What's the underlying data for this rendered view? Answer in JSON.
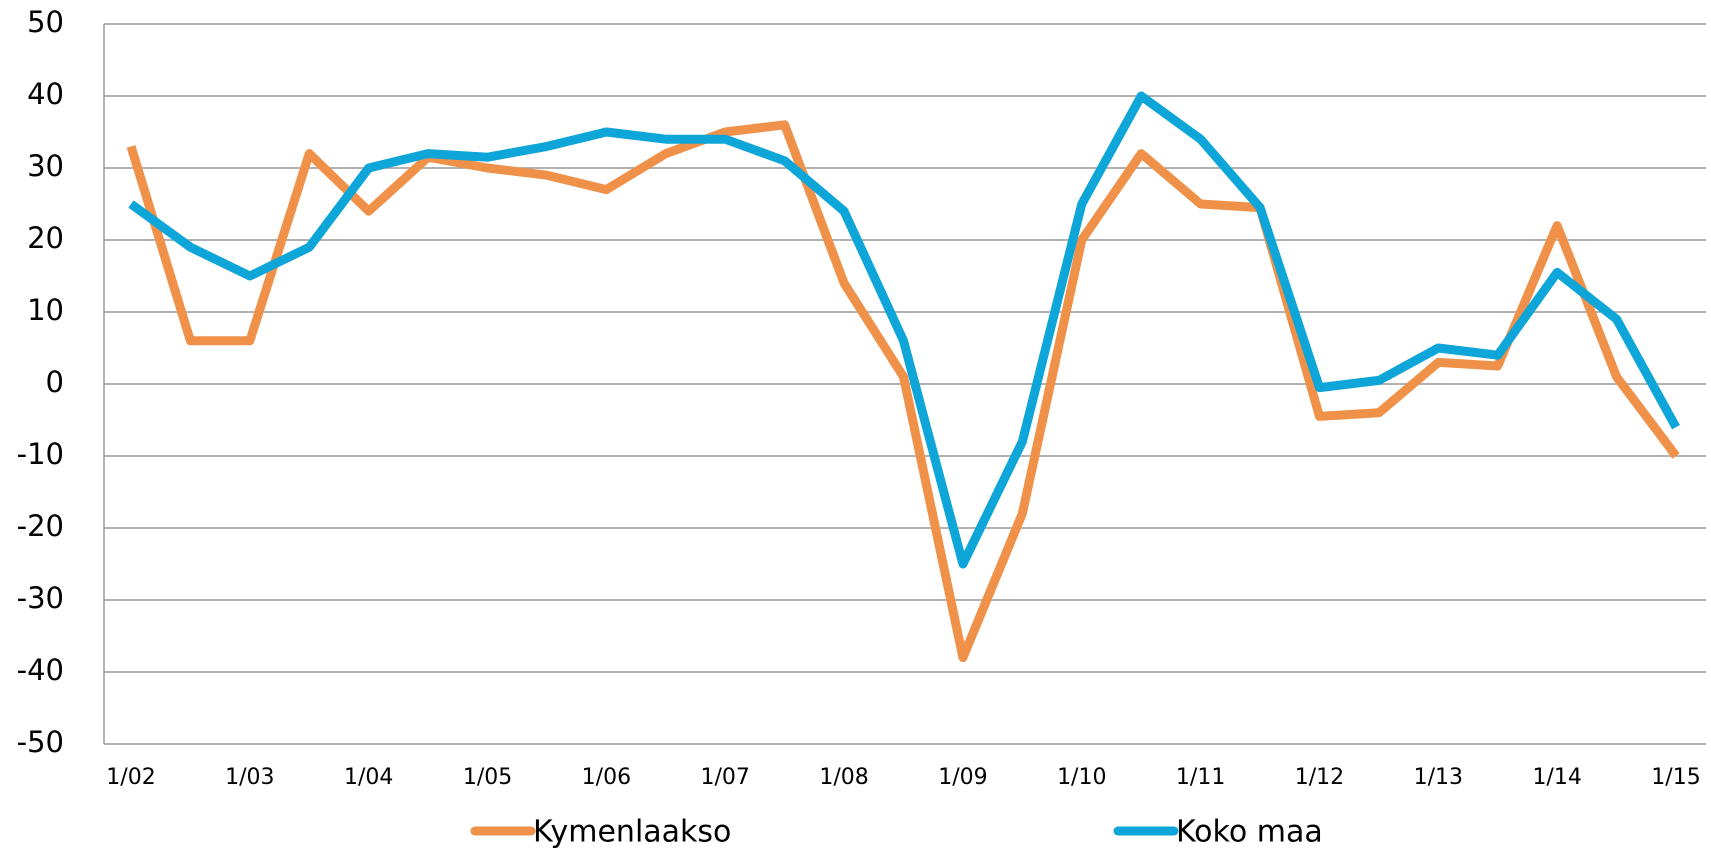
{
  "chart_data": {
    "type": "line",
    "categories": [
      "1/02",
      null,
      "1/03",
      null,
      "1/04",
      null,
      "1/05",
      null,
      "1/06",
      null,
      "1/07",
      null,
      "1/08",
      null,
      "1/09",
      null,
      "1/10",
      null,
      "1/11",
      null,
      "1/12",
      null,
      "1/13",
      null,
      "1/14",
      null,
      "1/15"
    ],
    "series": [
      {
        "name": "Kymenlaakso",
        "color": "#f0914a",
        "values": [
          33,
          6,
          6,
          32,
          24,
          31.5,
          30,
          29,
          27,
          32,
          35,
          36,
          14,
          1,
          -38,
          -18,
          20,
          32,
          25,
          24.5,
          -4.5,
          -4,
          3,
          2.5,
          22,
          1,
          -10
        ]
      },
      {
        "name": "Koko maa",
        "color": "#0ea5d8",
        "values": [
          25,
          19,
          15,
          19,
          30,
          32,
          31.5,
          33,
          35,
          34,
          34,
          31,
          24,
          6,
          -25,
          -8,
          25,
          40,
          34,
          24.5,
          -0.5,
          0.5,
          5,
          4,
          15.5,
          9,
          -6
        ]
      }
    ],
    "ylim": [
      -50,
      50
    ],
    "yticks": [
      -50,
      -40,
      -30,
      -20,
      -10,
      0,
      10,
      20,
      30,
      40,
      50
    ],
    "grid": true,
    "legend": "bottom"
  }
}
